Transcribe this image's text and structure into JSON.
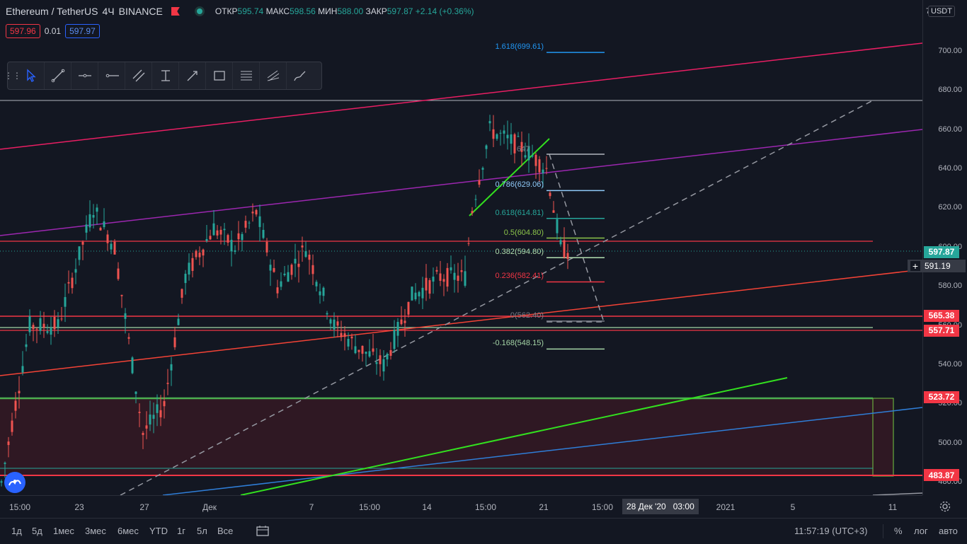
{
  "header": {
    "symbol": "Ethereum / TetherUS",
    "interval": "4Ч",
    "exchange": "BINANCE",
    "o_label": "ОТКР",
    "o_value": "595.74",
    "h_label": "МАКС",
    "h_value": "598.56",
    "l_label": "МИН",
    "l_value": "588.00",
    "c_label": "ЗАКР",
    "c_value": "597.87",
    "change": "+2.14 (+0.36%)"
  },
  "trade": {
    "sell": "597.96",
    "spread": "0.01",
    "buy": "597.97"
  },
  "toolbar_icons": [
    "cursor-icon",
    "trend-line-icon",
    "horizontal-ray-icon",
    "horizontal-line-icon",
    "parallel-channel-icon",
    "date-price-range-icon",
    "arrow-icon",
    "rectangle-icon",
    "fib-levels-icon",
    "pitchfork-icon",
    "brush-icon"
  ],
  "price_axis": {
    "unit": "USDT",
    "ticks": [
      "700.00",
      "680.00",
      "660.00",
      "640.00",
      "620.00",
      "600.00",
      "580.00",
      "560.00",
      "540.00",
      "520.00",
      "500.00",
      "480.00"
    ],
    "top_partial": "7",
    "tags": [
      {
        "text": "597.87",
        "price": 597.87,
        "color": "#26a69a"
      },
      {
        "text": "565.38",
        "price": 565.38,
        "color": "#f23645"
      },
      {
        "text": "557.71",
        "price": 557.71,
        "color": "#f23645"
      },
      {
        "text": "523.72",
        "price": 523.72,
        "color": "#f23645"
      },
      {
        "text": "483.87",
        "price": 483.87,
        "color": "#f23645"
      }
    ],
    "crosshair": "591.19"
  },
  "fib_levels": [
    {
      "text": "1.618(699.61)",
      "price": 699.61,
      "color": "#2196f3"
    },
    {
      "text": "0.786(629.06)",
      "price": 629.06,
      "color": "#90caf9"
    },
    {
      "text": "0.618(614.81)",
      "price": 614.81,
      "color": "#26a69a"
    },
    {
      "text": "0.5(604.80)",
      "price": 604.8,
      "color": "#8bc34a"
    },
    {
      "text": "0.382(594.80)",
      "price": 594.8,
      "color": "#b2dfb0"
    },
    {
      "text": "0.236(582.41)",
      "price": 582.41,
      "color": "#f23645"
    },
    {
      "text": "0(562.40)",
      "price": 562.4,
      "color": "#787b86"
    },
    {
      "text": "-0.168(548.15)",
      "price": 548.15,
      "color": "#a5d6a7"
    }
  ],
  "fib_top_partial": "647",
  "time_axis": {
    "labels": [
      "15:00",
      "23",
      "27",
      "Дек",
      "7",
      "15:00",
      "14",
      "15:00",
      "21",
      "15:00",
      "2021",
      "5",
      "11"
    ],
    "highlight_date": "28 Дек '20",
    "highlight_time": "03:00"
  },
  "bottom_bar": {
    "ranges": [
      "1д",
      "5д",
      "1мес",
      "3мес",
      "6мес",
      "YTD",
      "1г",
      "5л",
      "Все"
    ],
    "clock": "11:57:19 (UTC+3)",
    "percent": "%",
    "log": "лог",
    "auto": "авто"
  },
  "colors": {
    "up": "#26a69a",
    "down": "#ef5350",
    "bg": "#131722"
  }
}
